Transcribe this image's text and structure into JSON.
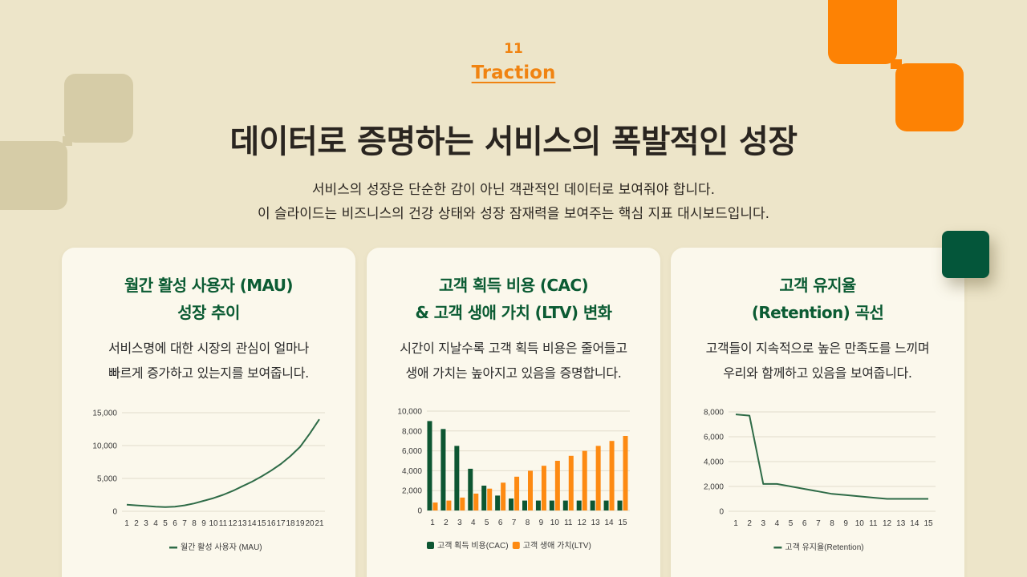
{
  "header": {
    "slide_number": "11",
    "section_title": "Traction",
    "title": "데이터로 증명하는 서비스의 폭발적인 성장",
    "subtitle_lines": [
      "서비스의 성장은 단순한 감이 아닌 객관적인 데이터로 보여줘야 합니다.",
      "이 슬라이드는 비즈니스의 건강 상태와 성장 잠재력을 보여주는 핵심 지표 대시보드입니다."
    ]
  },
  "colors": {
    "background": "#ede5c9",
    "card": "#fbf8ec",
    "accent_orange": "#f08311",
    "deco_orange": "#fd8204",
    "brand_green": "#0b5b33",
    "deco_green": "#04563a",
    "deco_tan": "#d6cca7",
    "series_green": "#2e6b47",
    "bar_green": "#0d5632",
    "bar_orange": "#fd8a12"
  },
  "cards": [
    {
      "title_lines": [
        "월간 활성 사용자 (MAU)",
        "성장 추이"
      ],
      "desc_lines": [
        "서비스명에 대한 시장의 관심이 얼마나",
        "빠르게 증가하고 있는지를 보여줍니다."
      ]
    },
    {
      "title_lines": [
        "고객 획득 비용 (CAC)",
        "& 고객 생애 가치 (LTV) 변화"
      ],
      "desc_lines": [
        "시간이 지날수록 고객 획득 비용은 줄어들고",
        "생애 가치는 높아지고 있음을 증명합니다."
      ]
    },
    {
      "title_lines": [
        "고객 유지율",
        "(Retention) 곡선"
      ],
      "desc_lines": [
        "고객들이 지속적으로 높은 만족도를 느끼며",
        "우리와 함께하고 있음을 보여줍니다."
      ]
    }
  ],
  "chart_data": [
    {
      "type": "line",
      "title": "월간 활성 사용자 (MAU) 성장 추이",
      "xlabel": "",
      "ylabel": "",
      "x": [
        1,
        2,
        3,
        4,
        5,
        6,
        7,
        8,
        9,
        10,
        11,
        12,
        13,
        14,
        15,
        16,
        17,
        18,
        19,
        20,
        21
      ],
      "series": [
        {
          "name": "월간 활성 사용자 (MAU)",
          "color": "#2e6b47",
          "values": [
            1000,
            900,
            800,
            700,
            650,
            700,
            900,
            1200,
            1600,
            2000,
            2500,
            3100,
            3800,
            4500,
            5300,
            6200,
            7200,
            8400,
            9800,
            11800,
            14000
          ]
        }
      ],
      "yticks": [
        0,
        5000,
        10000,
        15000
      ],
      "ytick_labels": [
        "0",
        "5,000",
        "10,000",
        "15,000"
      ],
      "ylim": [
        0,
        15000
      ],
      "grid": true,
      "legend_position": "bottom"
    },
    {
      "type": "bar",
      "title": "고객 획득 비용 (CAC) & 고객 생애 가치 (LTV) 변화",
      "xlabel": "",
      "ylabel": "",
      "categories": [
        1,
        2,
        3,
        4,
        5,
        6,
        7,
        8,
        9,
        10,
        11,
        12,
        13,
        14,
        15
      ],
      "series": [
        {
          "name": "고객 획득 비용(CAC)",
          "color": "#0d5632",
          "values": [
            9000,
            8200,
            6500,
            4200,
            2500,
            1500,
            1200,
            1000,
            1000,
            1000,
            1000,
            1000,
            1000,
            1000,
            1000
          ]
        },
        {
          "name": "고객 생애 가치(LTV)",
          "color": "#fd8a12",
          "values": [
            800,
            1000,
            1300,
            1700,
            2200,
            2800,
            3400,
            4000,
            4500,
            5000,
            5500,
            6000,
            6500,
            7000,
            7500
          ]
        }
      ],
      "yticks": [
        0,
        2000,
        4000,
        6000,
        8000,
        10000
      ],
      "ytick_labels": [
        "0",
        "2,000",
        "4,000",
        "6,000",
        "8,000",
        "10,000"
      ],
      "ylim": [
        0,
        10000
      ],
      "grid": true,
      "legend_position": "bottom"
    },
    {
      "type": "line",
      "title": "고객 유지율 (Retention) 곡선",
      "xlabel": "",
      "ylabel": "",
      "x": [
        1,
        2,
        3,
        4,
        5,
        6,
        7,
        8,
        9,
        10,
        11,
        12,
        13,
        14,
        15
      ],
      "series": [
        {
          "name": "고객 유지율(Retention)",
          "color": "#2e6b47",
          "values": [
            7800,
            7700,
            2200,
            2200,
            2000,
            1800,
            1600,
            1400,
            1300,
            1200,
            1100,
            1000,
            1000,
            1000,
            1000
          ]
        }
      ],
      "yticks": [
        0,
        2000,
        4000,
        6000,
        8000
      ],
      "ytick_labels": [
        "0",
        "2,000",
        "4,000",
        "6,000",
        "8,000"
      ],
      "ylim": [
        0,
        8000
      ],
      "grid": true,
      "legend_position": "bottom"
    }
  ]
}
